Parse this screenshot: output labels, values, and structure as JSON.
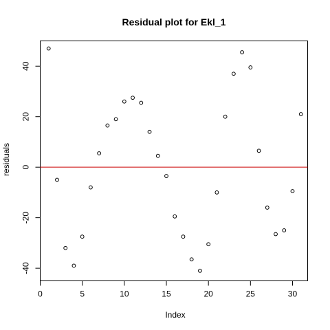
{
  "chart_data": {
    "type": "scatter",
    "title": "Residual plot for Ekl_1",
    "xlabel": "Index",
    "ylabel": "residuals",
    "xlim": [
      0,
      31.8
    ],
    "ylim": [
      -45,
      50
    ],
    "x_ticks": [
      0,
      5,
      10,
      15,
      20,
      25,
      30
    ],
    "y_ticks": [
      -40,
      -20,
      0,
      20,
      40
    ],
    "reference_line": {
      "y": 0,
      "color": "#cc0000"
    },
    "grid": false,
    "series": [
      {
        "x": [
          1,
          2,
          3,
          4,
          5,
          6,
          7,
          8,
          9,
          10,
          11,
          12,
          13,
          14,
          15,
          16,
          17,
          18,
          19,
          20,
          21,
          22,
          23,
          24,
          25,
          26,
          27,
          28,
          29,
          30,
          31
        ],
        "values": [
          47,
          -5,
          -32,
          -39,
          -27.5,
          -8,
          5.5,
          16.5,
          19,
          26,
          27.5,
          25.5,
          14,
          4.5,
          -3.5,
          -19.5,
          -27.5,
          -36.5,
          -41,
          -30.5,
          -10,
          20,
          37,
          45.5,
          39.5,
          6.5,
          -16,
          -26.5,
          -25,
          -9.5,
          21
        ]
      }
    ]
  }
}
